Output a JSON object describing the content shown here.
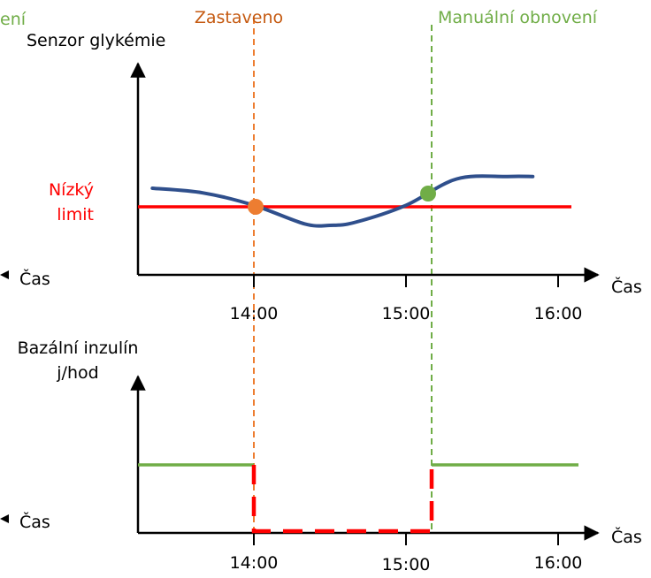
{
  "colors": {
    "axis": "#000000",
    "glucose_curve": "#2f4f8c",
    "low_limit": "#ff0000",
    "basal_normal": "#70ad47",
    "basal_suspended": "#ff0000",
    "stopped_marker": "#ed7d31",
    "resume_marker": "#70ad47"
  },
  "annotations": {
    "cutoff_left_label": "ení",
    "stopped_label": "Zastaveno",
    "resume_label": "Manuální obnovení"
  },
  "chart_data": [
    {
      "type": "line",
      "ylabel": "Senzor glykémie",
      "xlabel": "Čas",
      "left_xlabel": "Čas",
      "x_ticks": [
        "14:00",
        "15:00",
        "16:00"
      ],
      "threshold_label": [
        "Nízký",
        "limit"
      ],
      "threshold_value": 0,
      "series": [
        {
          "x": [
            "13:20",
            "13:40",
            "14:00",
            "14:20",
            "14:30",
            "14:40",
            "15:00",
            "15:20",
            "15:40",
            "15:50"
          ],
          "values": [
            0.6,
            0.45,
            0.05,
            -0.55,
            -0.6,
            -0.5,
            0.05,
            0.9,
            0.98,
            0.98
          ]
        }
      ],
      "events": [
        {
          "time": "14:00",
          "label": "Zastaveno"
        },
        {
          "time": "15:10",
          "label": "Manuální obnovení"
        }
      ]
    },
    {
      "type": "line",
      "ylabel": [
        "Bazální inzulín",
        "j/hod"
      ],
      "xlabel": "Čas",
      "left_xlabel": "Čas",
      "x_ticks": [
        "14:00",
        "15:00",
        "16:00"
      ],
      "segments": [
        {
          "state": "normal",
          "from": "13:00",
          "to": "14:00",
          "level": 1
        },
        {
          "state": "suspended",
          "from": "14:00",
          "to": "15:10",
          "level": 0
        },
        {
          "state": "normal",
          "from": "15:10",
          "to": "16:10",
          "level": 1
        }
      ]
    }
  ]
}
